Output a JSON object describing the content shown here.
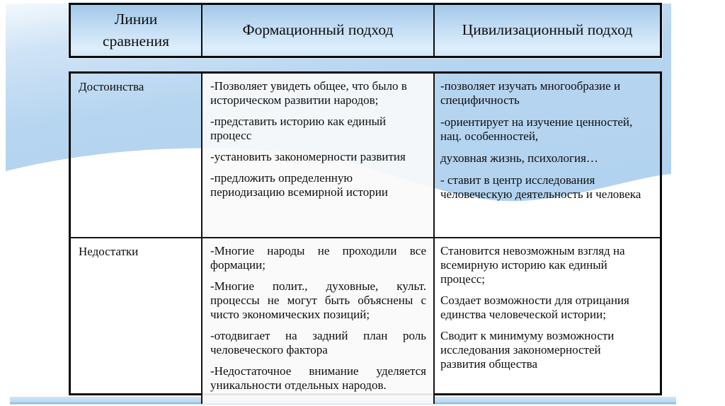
{
  "slide": {
    "type": "presentation-slide-comparison-table",
    "language": "ru"
  },
  "colors": {
    "slide_blue": "#b6d5f0",
    "slide_blue_light": "#dcecf9",
    "header_gradient_top": "#a2c8ea",
    "header_gradient_bottom": "#ddeefb",
    "swoosh_white": "#ffffff",
    "border_black": "#0b0b0b",
    "text": "#0d0d0d"
  },
  "table": {
    "headers": [
      "Линии сравнения",
      "Формационный подход",
      "Цивилизационный подход"
    ],
    "rows": [
      {
        "label": "Достоинства",
        "formational": [
          "-Позволяет увидеть общее, что было в историческом развитии народов;",
          "-представить историю как единый процесс",
          "-установить закономерности развития",
          "-предложить определенную периодизацию всемирной истории"
        ],
        "civilizational": [
          "-позволяет изучать многообразие и специфичность",
          "-ориентирует на изучение ценностей, нац. особенностей,",
          "духовная жизнь, психология…",
          "- ставит в центр исследования человеческую деятельность и человека"
        ]
      },
      {
        "label": "Недостатки",
        "formational": [
          "-Многие народы не проходили все формации;",
          "-Многие полит., духовные, культ. процессы не могут быть объяснены с чисто экономических позиций;",
          "-отодвигает на задний план роль человеческого фактора",
          "-Недостаточное внимание уделяется уникальности отдельных народов."
        ],
        "civilizational": [
          "Становится невозможным взгляд на всемирную историю как единый процесс;",
          "Создает возможности для отрицания единства человеческой истории;",
          "Сводит к минимуму возможности исследования закономерностей развития общества"
        ]
      }
    ]
  }
}
